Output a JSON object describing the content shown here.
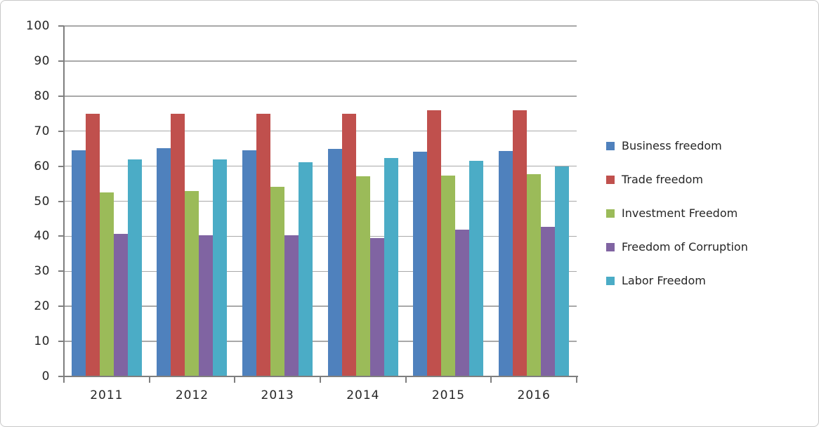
{
  "chart_data": {
    "type": "bar",
    "title": "",
    "xlabel": "",
    "ylabel": "",
    "categories": [
      "2011",
      "2012",
      "2013",
      "2014",
      "2015",
      "2016"
    ],
    "series": [
      {
        "name": "Business freedom",
        "color": "#4F81BD",
        "values": [
          64.6,
          65.1,
          64.6,
          65.0,
          64.2,
          64.3
        ]
      },
      {
        "name": "Trade freedom",
        "color": "#C0504D",
        "values": [
          75.0,
          75.0,
          75.0,
          75.0,
          76.0,
          76.0
        ]
      },
      {
        "name": "Investment Freedom",
        "color": "#9BBB59",
        "values": [
          52.5,
          53.0,
          54.2,
          57.1,
          57.4,
          57.8
        ]
      },
      {
        "name": "Freedom of Corruption",
        "color": "#8064A2",
        "values": [
          40.7,
          40.3,
          40.3,
          39.4,
          41.8,
          42.6
        ]
      },
      {
        "name": "Labor Freedom",
        "color": "#4BACC6",
        "values": [
          61.9,
          62.0,
          61.1,
          62.3,
          61.6,
          60.0
        ]
      }
    ],
    "ylim": [
      0,
      100
    ],
    "ytick_step": 10,
    "y_tick_labels": [
      "0",
      "10",
      "20",
      "30",
      "40",
      "50",
      "60",
      "70",
      "80",
      "90",
      "100"
    ],
    "grid": true,
    "legend_position": "right"
  },
  "theme": {
    "gridline_color": "#A9A9A9",
    "axis_color": "#7F7F7F",
    "text_color": "#262626",
    "frame_border_color": "#C8C8C8",
    "background_color": "#FFFFFF"
  }
}
